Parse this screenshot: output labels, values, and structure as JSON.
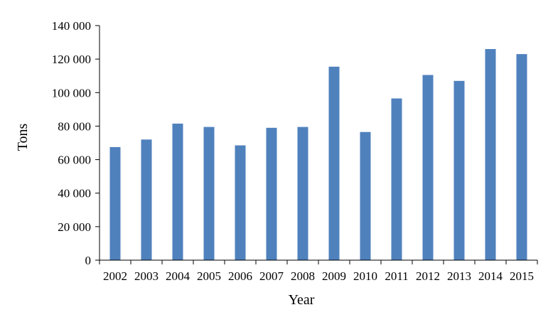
{
  "chart_data": {
    "type": "bar",
    "title": "",
    "xlabel": "Year",
    "ylabel": "Tons",
    "categories": [
      "2002",
      "2003",
      "2004",
      "2005",
      "2006",
      "2007",
      "2008",
      "2009",
      "2010",
      "2011",
      "2012",
      "2013",
      "2014",
      "2015"
    ],
    "values": [
      67500,
      72000,
      81500,
      79500,
      68500,
      79000,
      79500,
      115500,
      76500,
      96500,
      110500,
      107000,
      126000,
      123000
    ],
    "ylim": [
      0,
      140000
    ],
    "yticks": [
      0,
      20000,
      40000,
      60000,
      80000,
      100000,
      120000,
      140000
    ],
    "ytick_labels": [
      "0",
      "20 000",
      "40 000",
      "60 000",
      "80 000",
      "100 000",
      "120 000",
      "140 000"
    ],
    "grid": false,
    "legend": "none",
    "colors": {
      "bar": "#4f81bd",
      "axis": "#000000"
    }
  }
}
